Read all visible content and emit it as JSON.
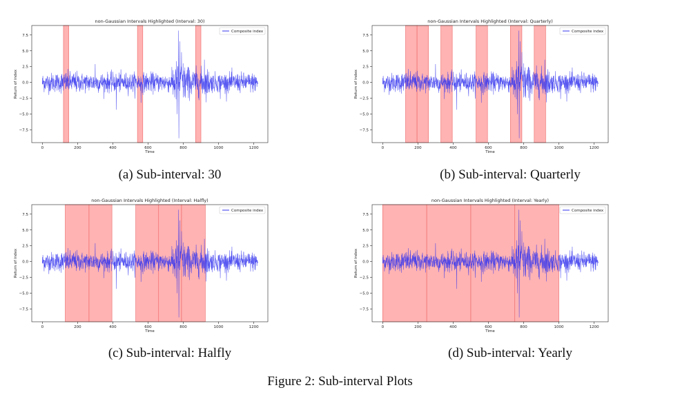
{
  "figure_caption": "Figure 2: Sub-interval Plots",
  "chart_data": [
    {
      "type": "line",
      "title": "non-Gaussian Intervals Highlighted (Interval: 30)",
      "xlabel": "Time",
      "ylabel": "Return of index",
      "xlim": [
        -60,
        1280
      ],
      "ylim": [
        -9.5,
        9.0
      ],
      "xticks": [
        0,
        200,
        400,
        600,
        800,
        1000,
        1200
      ],
      "yticks": [
        -7.5,
        -5.0,
        -2.5,
        0.0,
        2.5,
        5.0,
        7.5
      ],
      "ytick_labels": [
        "−7.5",
        "−5.0",
        "−2.5",
        "0.0",
        "2.5",
        "5.0",
        "7.5"
      ],
      "legend": "Composite index",
      "legend_position": "top-right",
      "series_color": "#3333ee",
      "highlight_color": "#ff9999",
      "n_points": 1225,
      "highlighted_intervals": [
        [
          120,
          150
        ],
        [
          540,
          570
        ],
        [
          870,
          900
        ]
      ],
      "caption": "(a) Sub-interval: 30"
    },
    {
      "type": "line",
      "title": "non-Gaussian Intervals Highlighted (Interval: Quarterly)",
      "xlabel": "Time",
      "ylabel": "Return of index",
      "xlim": [
        -60,
        1280
      ],
      "ylim": [
        -9.5,
        9.0
      ],
      "xticks": [
        0,
        200,
        400,
        600,
        800,
        1000,
        1200
      ],
      "yticks": [
        -7.5,
        -5.0,
        -2.5,
        0.0,
        2.5,
        5.0,
        7.5
      ],
      "ytick_labels": [
        "−7.5",
        "−5.0",
        "−2.5",
        "0.0",
        "2.5",
        "5.0",
        "7.5"
      ],
      "legend": "Composite index",
      "legend_position": "top-right",
      "series_color": "#3333ee",
      "highlight_color": "#ff9999",
      "n_points": 1225,
      "highlighted_intervals": [
        [
          130,
          195
        ],
        [
          195,
          260
        ],
        [
          330,
          395
        ],
        [
          530,
          595
        ],
        [
          725,
          790
        ],
        [
          860,
          925
        ]
      ],
      "caption": "(b) Sub-interval: Quarterly"
    },
    {
      "type": "line",
      "title": "non-Gaussian Intervals Highlighted (Interval: Halfly)",
      "xlabel": "Time",
      "ylabel": "Return of index",
      "xlim": [
        -60,
        1280
      ],
      "ylim": [
        -9.5,
        9.0
      ],
      "xticks": [
        0,
        200,
        400,
        600,
        800,
        1000,
        1200
      ],
      "yticks": [
        -7.5,
        -5.0,
        -2.5,
        0.0,
        2.5,
        5.0,
        7.5
      ],
      "ytick_labels": [
        "−7.5",
        "−5.0",
        "−2.5",
        "0.0",
        "2.5",
        "5.0",
        "7.5"
      ],
      "legend": "Composite index",
      "legend_position": "top-right",
      "series_color": "#3333ee",
      "highlight_color": "#ff9999",
      "n_points": 1225,
      "highlighted_intervals": [
        [
          130,
          265
        ],
        [
          265,
          395
        ],
        [
          530,
          660
        ],
        [
          660,
          790
        ],
        [
          790,
          925
        ]
      ],
      "caption": "(c) Sub-interval: Halfly"
    },
    {
      "type": "line",
      "title": "non-Gaussian Intervals Highlighted (Interval: Yearly)",
      "xlabel": "Time",
      "ylabel": "Return of index",
      "xlim": [
        -60,
        1280
      ],
      "ylim": [
        -9.5,
        9.0
      ],
      "xticks": [
        0,
        200,
        400,
        600,
        800,
        1000,
        1200
      ],
      "yticks": [
        -7.5,
        -5.0,
        -2.5,
        0.0,
        2.5,
        5.0,
        7.5
      ],
      "ytick_labels": [
        "−7.5",
        "−5.0",
        "−2.5",
        "0.0",
        "2.5",
        "5.0",
        "7.5"
      ],
      "legend": "Composite index",
      "legend_position": "top-right",
      "series_color": "#3333ee",
      "highlight_color": "#ff9999",
      "n_points": 1225,
      "highlighted_intervals": [
        [
          0,
          250
        ],
        [
          250,
          500
        ],
        [
          500,
          750
        ],
        [
          750,
          1000
        ]
      ],
      "caption": "(d) Sub-interval: Yearly"
    }
  ]
}
